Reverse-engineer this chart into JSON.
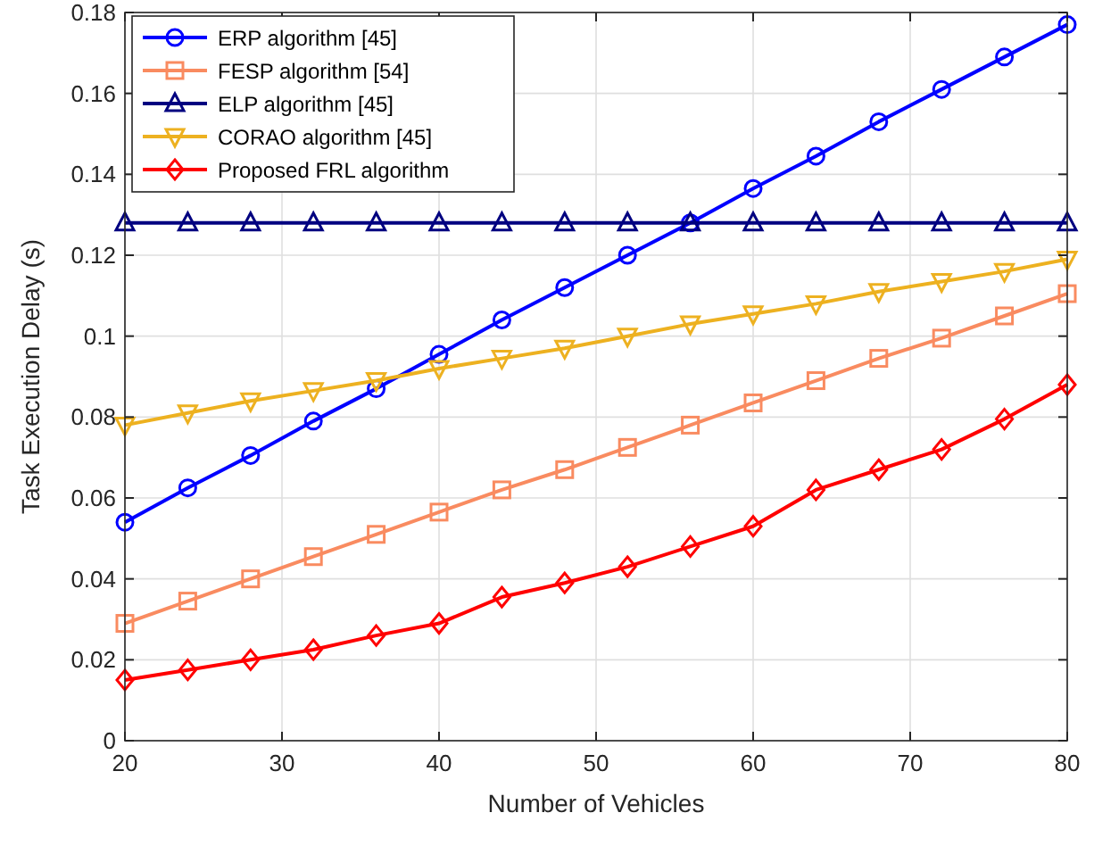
{
  "chart_data": {
    "type": "line",
    "xlabel": "Number of Vehicles",
    "ylabel": "Task Execution Delay (s)",
    "x": [
      20,
      24,
      28,
      32,
      36,
      40,
      44,
      48,
      52,
      56,
      60,
      64,
      68,
      72,
      76,
      80
    ],
    "xlim": [
      20,
      80
    ],
    "xticks": [
      20,
      30,
      40,
      50,
      60,
      70,
      80
    ],
    "ylim": [
      0,
      0.18
    ],
    "yticks": [
      0,
      0.02,
      0.04,
      0.06,
      0.08,
      {
        "value": 0.1,
        "label": "0.1"
      },
      0.12,
      0.14,
      0.16,
      0.18
    ],
    "grid": true,
    "legend": "top left",
    "line_style": "solid",
    "series": [
      {
        "name": "ERP algorithm [45]",
        "color": "#0000ff",
        "marker": "circle",
        "values": [
          0.054,
          0.0625,
          0.0705,
          0.079,
          0.087,
          0.0955,
          0.104,
          0.112,
          0.12,
          0.128,
          0.1365,
          0.1445,
          0.153,
          0.161,
          0.169,
          0.177
        ]
      },
      {
        "name": "FESP algorithm [54]",
        "color": "#f98b60",
        "marker": "square",
        "values": [
          0.029,
          0.0345,
          0.04,
          0.0455,
          0.051,
          0.0565,
          0.062,
          0.067,
          0.0725,
          0.078,
          0.0835,
          0.089,
          0.0945,
          0.0995,
          0.105,
          0.1105
        ]
      },
      {
        "name": "ELP algorithm [45]",
        "color": "#000080",
        "marker": "triangle",
        "values": [
          0.128,
          0.128,
          0.128,
          0.128,
          0.128,
          0.128,
          0.128,
          0.128,
          0.128,
          0.128,
          0.128,
          0.128,
          0.128,
          0.128,
          0.128,
          0.128
        ]
      },
      {
        "name": "CORAO algorithm [45]",
        "color": "#edb120",
        "marker": "triangle-down",
        "values": [
          0.078,
          0.081,
          0.084,
          0.0865,
          0.089,
          0.092,
          0.0945,
          0.097,
          0.1,
          0.103,
          0.1055,
          0.108,
          0.111,
          0.1135,
          0.116,
          0.119
        ]
      },
      {
        "name": "Proposed FRL algorithm",
        "color": "#ff0000",
        "marker": "diamond",
        "values": [
          0.015,
          0.0175,
          0.02,
          0.0225,
          0.026,
          0.029,
          0.0355,
          0.039,
          0.043,
          0.048,
          0.053,
          0.062,
          0.067,
          0.072,
          0.0795,
          0.088
        ]
      }
    ]
  }
}
